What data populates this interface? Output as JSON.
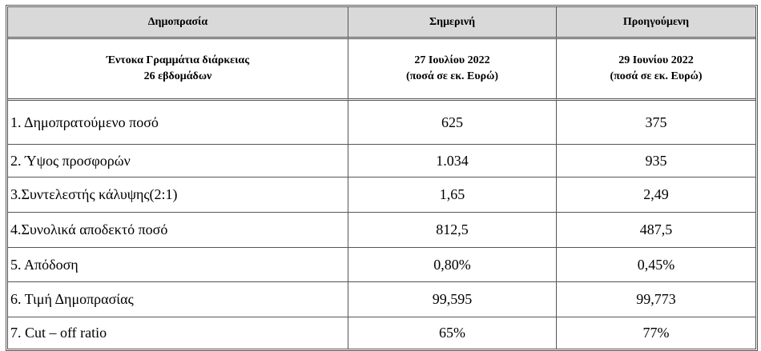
{
  "table": {
    "header": [
      "Δημοπρασία",
      "Σημερινή",
      "Προηγούμενη"
    ],
    "subheader": [
      [
        "Έντοκα Γραμμάτια διάρκειας",
        "26 εβδομάδων"
      ],
      [
        "27 Ιουλίου 2022",
        "(ποσά σε εκ. Ευρώ)"
      ],
      [
        "29 Ιουνίου 2022",
        "(ποσά σε εκ. Ευρώ)"
      ]
    ],
    "rows": [
      [
        "1. Δημοπρατούμενο ποσό",
        "625",
        "375"
      ],
      [
        "2. Ύψος προσφορών",
        "1.034",
        "935"
      ],
      [
        "3.Συντελεστής κάλυψης(2:1)",
        "1,65",
        "2,49"
      ],
      [
        "4.Συνολικά αποδεκτό ποσό",
        "812,5",
        "487,5"
      ],
      [
        "5. Απόδοση",
        "0,80%",
        "0,45%"
      ],
      [
        "6. Τιμή Δημοπρασίας",
        "99,595",
        "99,773"
      ],
      [
        "7. Cut – off ratio",
        "65%",
        "77%"
      ]
    ]
  }
}
